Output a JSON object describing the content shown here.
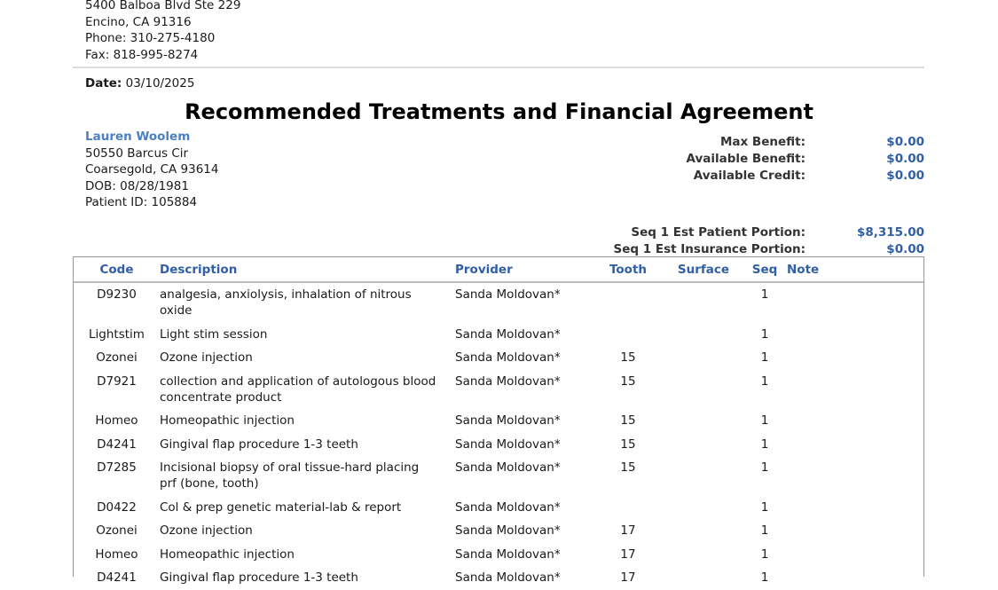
{
  "practice": {
    "address1": "5400 Balboa Blvd Ste 229",
    "address2": "Encino, CA 91316",
    "phone": "Phone: 310-275-4180",
    "fax": "Fax: 818-995-8274"
  },
  "date": {
    "label": "Date:",
    "value": "03/10/2025"
  },
  "title": "Recommended Treatments and Financial Agreement",
  "patient": {
    "name": "Lauren Woolem",
    "address1": "50550 Barcus Cir",
    "address2": "Coarsegold, CA 93614",
    "dob": "DOB: 08/28/1981",
    "id": "Patient ID: 105884"
  },
  "summary": [
    {
      "label": "Max Benefit:",
      "value": "$0.00"
    },
    {
      "label": "Available Benefit:",
      "value": "$0.00"
    },
    {
      "label": "Available Credit:",
      "value": "$0.00"
    }
  ],
  "portions": [
    {
      "label": "Seq 1 Est Patient Portion:",
      "value": "$8,315.00"
    },
    {
      "label": "Seq 1 Est Insurance Portion:",
      "value": "$0.00"
    }
  ],
  "table": {
    "headers": {
      "code": "Code",
      "description": "Description",
      "provider": "Provider",
      "tooth": "Tooth",
      "surface": "Surface",
      "seq": "Seq",
      "note": "Note"
    },
    "rows": [
      {
        "code": "D9230",
        "description": "analgesia, anxiolysis, inhalation of nitrous oxide",
        "provider": "Sanda Moldovan*",
        "tooth": "",
        "surface": "",
        "seq": "1",
        "note": ""
      },
      {
        "code": "Lightstim",
        "description": "Light stim session",
        "provider": "Sanda Moldovan*",
        "tooth": "",
        "surface": "",
        "seq": "1",
        "note": ""
      },
      {
        "code": "Ozonei",
        "description": "Ozone injection",
        "provider": "Sanda Moldovan*",
        "tooth": "15",
        "surface": "",
        "seq": "1",
        "note": ""
      },
      {
        "code": "D7921",
        "description": "collection and application of autologous blood concentrate product",
        "provider": "Sanda Moldovan*",
        "tooth": "15",
        "surface": "",
        "seq": "1",
        "note": ""
      },
      {
        "code": "Homeo",
        "description": "Homeopathic injection",
        "provider": "Sanda Moldovan*",
        "tooth": "15",
        "surface": "",
        "seq": "1",
        "note": ""
      },
      {
        "code": "D4241",
        "description": "Gingival flap procedure 1-3 teeth",
        "provider": "Sanda Moldovan*",
        "tooth": "15",
        "surface": "",
        "seq": "1",
        "note": ""
      },
      {
        "code": "D7285",
        "description": "Incisional biopsy of oral tissue-hard placing prf (bone, tooth)",
        "provider": "Sanda Moldovan*",
        "tooth": "15",
        "surface": "",
        "seq": "1",
        "note": ""
      },
      {
        "code": "D0422",
        "description": "Col & prep genetic material-lab & report",
        "provider": "Sanda Moldovan*",
        "tooth": "",
        "surface": "",
        "seq": "1",
        "note": ""
      },
      {
        "code": "Ozonei",
        "description": "Ozone injection",
        "provider": "Sanda Moldovan*",
        "tooth": "17",
        "surface": "",
        "seq": "1",
        "note": ""
      },
      {
        "code": "Homeo",
        "description": "Homeopathic injection",
        "provider": "Sanda Moldovan*",
        "tooth": "17",
        "surface": "",
        "seq": "1",
        "note": ""
      },
      {
        "code": "D4241",
        "description": "Gingival flap procedure 1-3 teeth",
        "provider": "Sanda Moldovan*",
        "tooth": "17",
        "surface": "",
        "seq": "1",
        "note": ""
      }
    ]
  }
}
